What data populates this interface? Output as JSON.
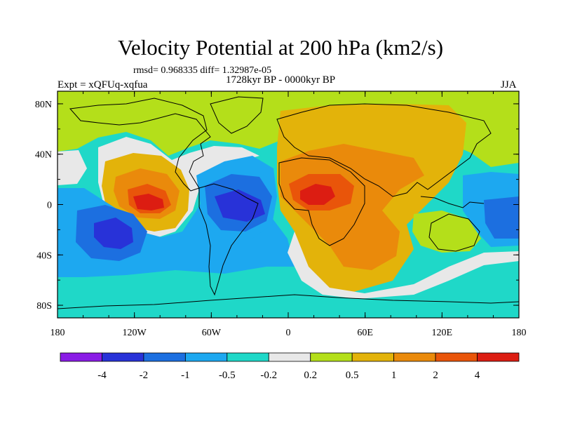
{
  "chart_data": {
    "type": "contour-map",
    "title": "Velocity Potential at 200 hPa (km2/s)",
    "stats": "rmsd= 0.968335 diff= 1.32987e-05",
    "period": "1728kyr BP - 0000kyr BP",
    "experiment": "Expt = xQFUq-xqfua",
    "season": "JJA",
    "xlim": [
      -180,
      180
    ],
    "ylim": [
      -90,
      90
    ],
    "x_ticks": [
      {
        "value": -180,
        "label": "180"
      },
      {
        "value": -120,
        "label": "120W"
      },
      {
        "value": -60,
        "label": "60W"
      },
      {
        "value": 0,
        "label": "0"
      },
      {
        "value": 60,
        "label": "60E"
      },
      {
        "value": 120,
        "label": "120E"
      },
      {
        "value": 180,
        "label": "180"
      }
    ],
    "y_ticks": [
      {
        "value": 80,
        "label": "80N"
      },
      {
        "value": 40,
        "label": "40N"
      },
      {
        "value": 0,
        "label": "0"
      },
      {
        "value": -40,
        "label": "40S"
      },
      {
        "value": -80,
        "label": "80S"
      }
    ],
    "contour_levels": [
      "-4",
      "-2",
      "-1",
      "-0.5",
      "-0.2",
      "0.2",
      "0.5",
      "1",
      "2",
      "4"
    ],
    "colorbar_colors": [
      "#8a1ce6",
      "#2832d8",
      "#1c6fe0",
      "#1da8f0",
      "#1fd8c8",
      "#e8e8e8",
      "#b4df1a",
      "#e3b30a",
      "#ea8a0b",
      "#e9550a",
      "#dc1d12"
    ],
    "field_extrema": [
      {
        "name": "Central Pacific minimum",
        "lon": -145,
        "lat": -17,
        "level": "< -2"
      },
      {
        "name": "South America minimum",
        "lon": -45,
        "lat": 0,
        "level": "< -2"
      },
      {
        "name": "East Pacific maximum",
        "lon": -105,
        "lat": 0,
        "level": "> 2"
      },
      {
        "name": "North Africa maximum",
        "lon": 25,
        "lat": 10,
        "level": "> 2"
      },
      {
        "name": "West Pacific minimum",
        "lon": 165,
        "lat": -5,
        "level": "< -1"
      }
    ]
  },
  "colors": {
    "background": "#ffffff",
    "coastline": "#000000"
  }
}
